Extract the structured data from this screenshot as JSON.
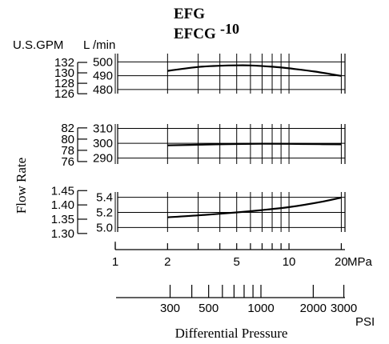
{
  "chart_data": {
    "type": "line",
    "title_line1": "EFG",
    "title_line2": "EFCG",
    "title_suffix": "-10",
    "ylabel": "Flow Rate",
    "xlabel": "Differential Pressure",
    "unit_gpm": "U.S.GPM",
    "unit_lmin": "L /min",
    "mpa_unit": "MPa",
    "psi_unit": "PSI",
    "mpa_range": [
      1,
      21
    ],
    "mpa_ticks": [
      1,
      2,
      3,
      4,
      5,
      6,
      7,
      8,
      9,
      10,
      20
    ],
    "mpa_tick_labels": [
      {
        "v": 1,
        "label": "1"
      },
      {
        "v": 2,
        "label": "2"
      },
      {
        "v": 5,
        "label": "5"
      },
      {
        "v": 10,
        "label": "10"
      },
      {
        "v": 20,
        "label": "20"
      }
    ],
    "psi_ticks": [
      300,
      400,
      500,
      600,
      700,
      800,
      900,
      1000,
      2000,
      3000
    ],
    "psi_tick_labels": [
      {
        "v": 300,
        "label": "300"
      },
      {
        "v": 500,
        "label": "500"
      },
      {
        "v": 1000,
        "label": "1000"
      },
      {
        "v": 2000,
        "label": "2000"
      },
      {
        "v": 3000,
        "label": "3000"
      }
    ],
    "panels": [
      {
        "name": "panel-1",
        "lmin_ticks": [
          {
            "v": 480,
            "label": "480"
          },
          {
            "v": 490,
            "label": "490"
          },
          {
            "v": 500,
            "label": "500"
          }
        ],
        "lmin_range": [
          477,
          506
        ],
        "gpm_ticks": [
          {
            "v": 126,
            "label": "126"
          },
          {
            "v": 128,
            "label": "128"
          },
          {
            "v": 130,
            "label": "130"
          },
          {
            "v": 132,
            "label": "132"
          }
        ],
        "gpm_per_lmin": 3.785,
        "x": [
          2,
          3,
          4,
          5,
          6,
          8,
          10,
          14,
          20
        ],
        "y": [
          493.5,
          496.3,
          497.2,
          497.5,
          497.4,
          496.5,
          495.3,
          493.0,
          489.8
        ]
      },
      {
        "name": "panel-2",
        "lmin_ticks": [
          {
            "v": 290,
            "label": "290"
          },
          {
            "v": 300,
            "label": "300"
          },
          {
            "v": 310,
            "label": "310"
          }
        ],
        "lmin_range": [
          286,
          313
        ],
        "gpm_ticks": [
          {
            "v": 76,
            "label": "76"
          },
          {
            "v": 78,
            "label": "78"
          },
          {
            "v": 80,
            "label": "80"
          },
          {
            "v": 82,
            "label": "82"
          }
        ],
        "gpm_per_lmin": 3.785,
        "x": [
          2,
          3,
          5,
          7,
          10,
          15,
          20
        ],
        "y": [
          298.6,
          299.0,
          299.5,
          299.7,
          299.6,
          299.4,
          299.3
        ]
      },
      {
        "name": "panel-3",
        "lmin_ticks": [
          {
            "v": 5.0,
            "label": "5.0"
          },
          {
            "v": 5.2,
            "label": "5.2"
          },
          {
            "v": 5.4,
            "label": "5.4"
          }
        ],
        "lmin_range": [
          4.94,
          5.47
        ],
        "gpm_ticks": [
          {
            "v": 1.3,
            "label": "1.30"
          },
          {
            "v": 1.35,
            "label": "1.35"
          },
          {
            "v": 1.4,
            "label": "1.40"
          },
          {
            "v": 1.45,
            "label": "1.45"
          }
        ],
        "gpm_per_lmin": 3.785,
        "x": [
          2,
          3,
          5,
          7,
          10,
          15,
          20
        ],
        "y": [
          5.135,
          5.16,
          5.2,
          5.23,
          5.27,
          5.335,
          5.395
        ]
      }
    ]
  }
}
